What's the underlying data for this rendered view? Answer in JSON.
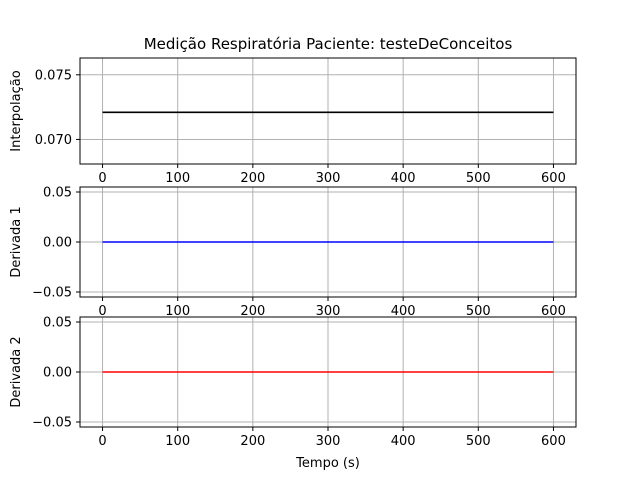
{
  "title": "Medição Respiratória Paciente: testeDeConceitos",
  "chart_data": [
    {
      "type": "line",
      "title": "Medição Respiratória Paciente: testeDeConceitos",
      "xlabel": "",
      "ylabel": "Interpolação",
      "xlim": [
        -30,
        630
      ],
      "ylim": [
        0.0681,
        0.0763
      ],
      "xticks": [
        0,
        100,
        200,
        300,
        400,
        500,
        600
      ],
      "xtick_labels": [
        "0",
        "100",
        "200",
        "300",
        "400",
        "500",
        "600"
      ],
      "yticks": [
        0.07,
        0.075
      ],
      "ytick_labels": [
        "0.070",
        "0.075"
      ],
      "grid": true,
      "series": [
        {
          "color": "#000000",
          "x": [
            0,
            600
          ],
          "y": [
            0.0721,
            0.0721
          ]
        }
      ]
    },
    {
      "type": "line",
      "xlabel": "",
      "ylabel": "Derivada 1",
      "xlim": [
        -30,
        630
      ],
      "ylim": [
        -0.055,
        0.055
      ],
      "xticks": [
        0,
        100,
        200,
        300,
        400,
        500,
        600
      ],
      "xtick_labels": [
        "0",
        "100",
        "200",
        "300",
        "400",
        "500",
        "600"
      ],
      "yticks": [
        -0.05,
        0.0,
        0.05
      ],
      "ytick_labels": [
        "−0.05",
        "0.00",
        "0.05"
      ],
      "grid": true,
      "series": [
        {
          "color": "#0000ff",
          "x": [
            0,
            600
          ],
          "y": [
            0.0,
            0.0
          ]
        }
      ]
    },
    {
      "type": "line",
      "xlabel": "Tempo (s)",
      "ylabel": "Derivada 2",
      "xlim": [
        -30,
        630
      ],
      "ylim": [
        -0.055,
        0.055
      ],
      "xticks": [
        0,
        100,
        200,
        300,
        400,
        500,
        600
      ],
      "xtick_labels": [
        "0",
        "100",
        "200",
        "300",
        "400",
        "500",
        "600"
      ],
      "yticks": [
        -0.05,
        0.0,
        0.05
      ],
      "ytick_labels": [
        "−0.05",
        "0.00",
        "0.05"
      ],
      "grid": true,
      "series": [
        {
          "color": "#ff0000",
          "x": [
            0,
            600
          ],
          "y": [
            0.0,
            0.0
          ]
        }
      ]
    }
  ]
}
